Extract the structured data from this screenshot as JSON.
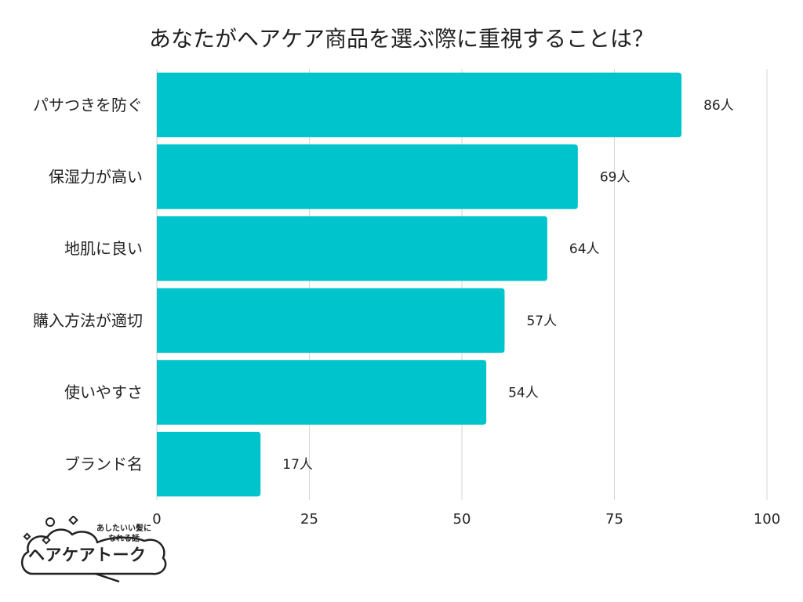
{
  "chart_data": {
    "type": "bar",
    "orientation": "horizontal",
    "title": "あなたがヘアケア商品を選ぶ際に重視することは？",
    "categories": [
      "パサつきを防ぐ",
      "保湿力が高い",
      "地肌に良い",
      "購入方法が適切",
      "使いやすさ",
      "ブランド名"
    ],
    "values": [
      86,
      69,
      64,
      57,
      54,
      17
    ],
    "value_labels": [
      "86人",
      "69人",
      "64人",
      "57人",
      "54人",
      "17人"
    ],
    "xlim": [
      0,
      100
    ],
    "xticks": [
      "0",
      "25",
      "50",
      "75",
      "100"
    ],
    "grid": true,
    "bar_color": "#00c4cc",
    "grid_color": "#d4d4d4"
  },
  "logo": {
    "main_text": "ヘアケアトーク",
    "sub_line1": "あしたいい髪に",
    "sub_line2": "なれる話"
  }
}
